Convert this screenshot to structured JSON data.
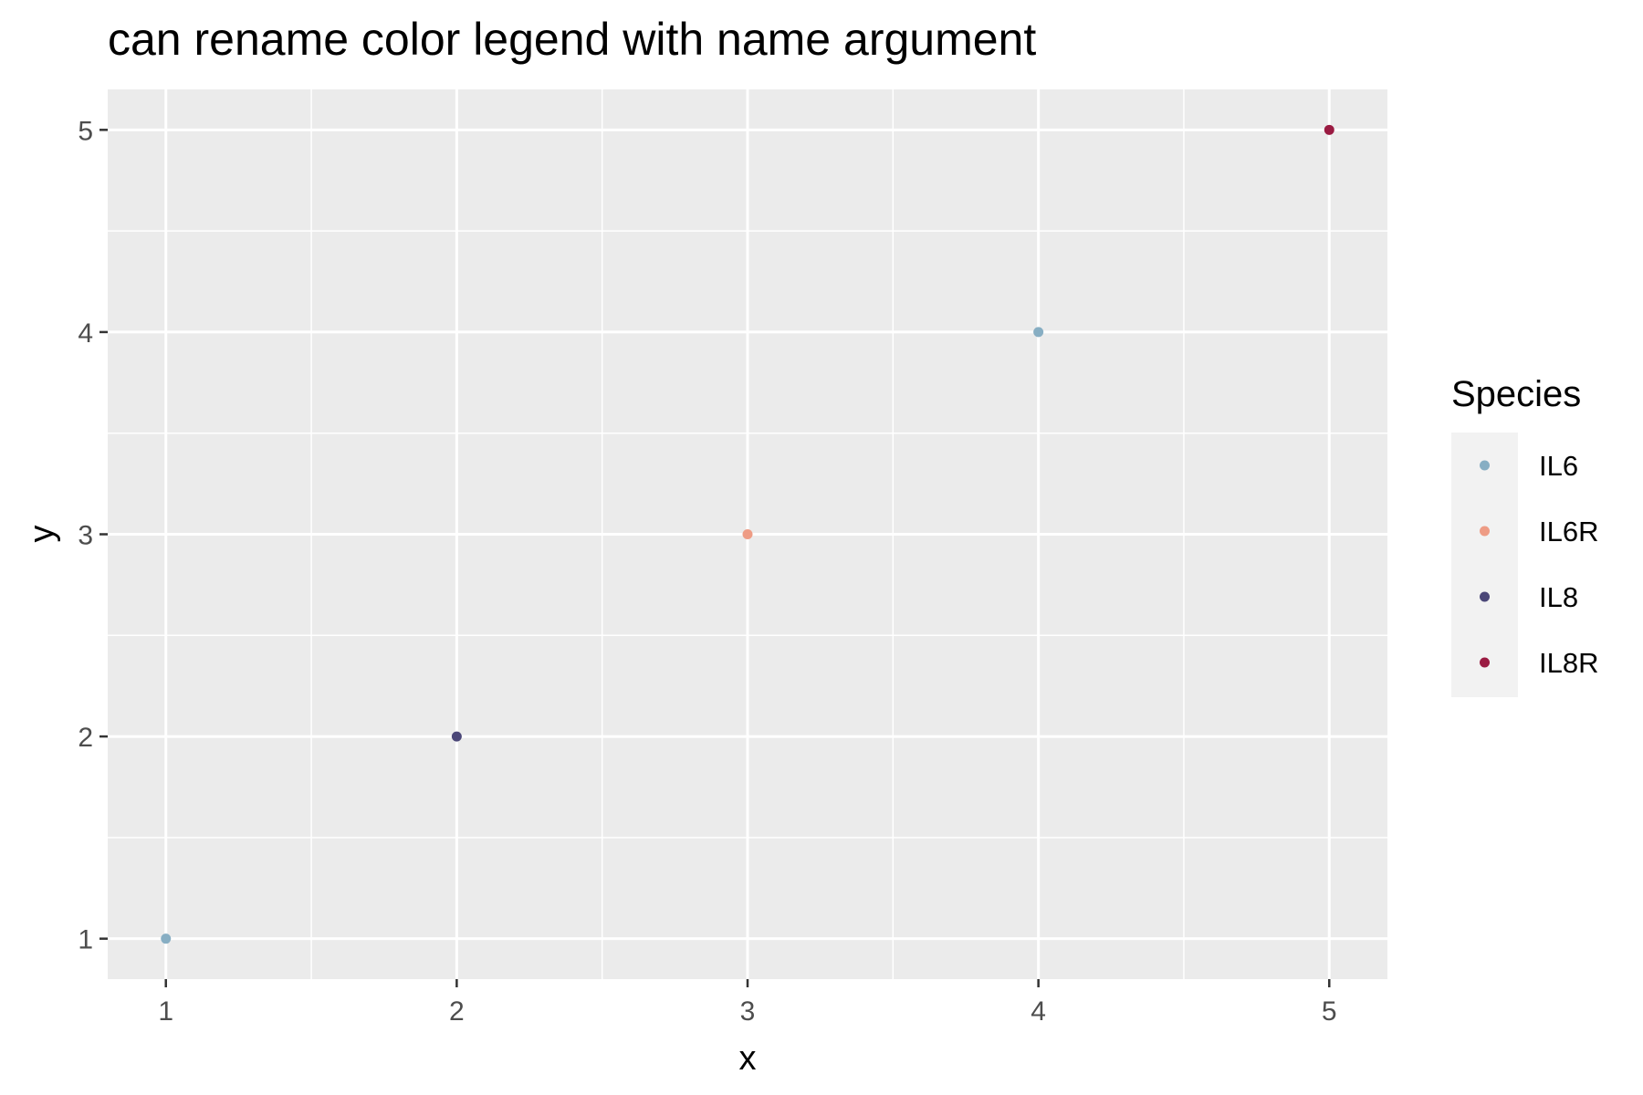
{
  "chart_data": {
    "type": "scatter",
    "title": "can rename color legend with name argument",
    "xlabel": "x",
    "ylabel": "y",
    "xlim": [
      0.8,
      5.2
    ],
    "ylim": [
      0.8,
      5.2
    ],
    "x_ticks": [
      1,
      2,
      3,
      4,
      5
    ],
    "y_ticks": [
      1,
      2,
      3,
      4,
      5
    ],
    "grid": true,
    "legend": {
      "title": "Species",
      "placement": "right",
      "entries": [
        {
          "label": "IL6",
          "color": "#87AEC3"
        },
        {
          "label": "IL6R",
          "color": "#EE9C85"
        },
        {
          "label": "IL8",
          "color": "#4B4778"
        },
        {
          "label": "IL8R",
          "color": "#9A1B42"
        }
      ]
    },
    "points": [
      {
        "x": 1,
        "y": 1,
        "species": "IL6"
      },
      {
        "x": 2,
        "y": 2,
        "species": "IL8"
      },
      {
        "x": 3,
        "y": 3,
        "species": "IL6R"
      },
      {
        "x": 4,
        "y": 4,
        "species": "IL6"
      },
      {
        "x": 5,
        "y": 5,
        "species": "IL8R"
      }
    ],
    "colors": {
      "panel_background": "#EBEBEB",
      "legend_key_background": "#F2F2F2",
      "gridline": "#FFFFFF",
      "tick_mark": "#333333"
    }
  }
}
